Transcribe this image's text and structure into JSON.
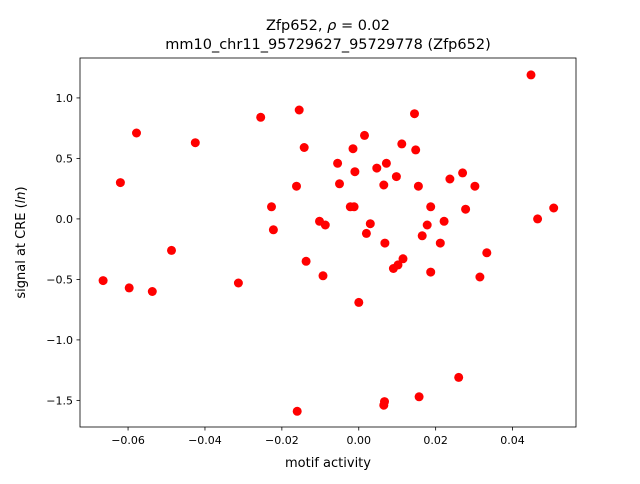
{
  "chart_data": {
    "type": "scatter",
    "title_line1_prefix": "Zfp652, ",
    "title_line1_rho": "ρ",
    "title_line1_suffix": " = 0.02",
    "title_line2": "mm10_chr11_95729627_95729778 (Zfp652)",
    "xlabel": "motif activity",
    "ylabel_prefix": "signal at CRE (",
    "ylabel_italic": "ln",
    "ylabel_suffix": ")",
    "xlim": [
      -0.0725,
      0.0565
    ],
    "ylim": [
      -1.72,
      1.33
    ],
    "xticks": [
      -0.06,
      -0.04,
      -0.02,
      0.0,
      0.02,
      0.04
    ],
    "xtick_labels": [
      "−0.06",
      "−0.04",
      "−0.02",
      "0.00",
      "0.02",
      "0.04"
    ],
    "yticks": [
      -1.5,
      -1.0,
      -0.5,
      0.0,
      0.5,
      1.0
    ],
    "ytick_labels": [
      "−1.5",
      "−1.0",
      "−0.5",
      "0.0",
      "0.5",
      "1.0"
    ],
    "grid": false,
    "marker_color": "#ff0000",
    "points": [
      {
        "x": -0.0665,
        "y": -0.51
      },
      {
        "x": -0.062,
        "y": 0.3
      },
      {
        "x": -0.0597,
        "y": -0.57
      },
      {
        "x": -0.0578,
        "y": 0.71
      },
      {
        "x": -0.0537,
        "y": -0.6
      },
      {
        "x": -0.0487,
        "y": -0.26
      },
      {
        "x": -0.0425,
        "y": 0.63
      },
      {
        "x": -0.0313,
        "y": -0.53
      },
      {
        "x": -0.0255,
        "y": 0.84
      },
      {
        "x": -0.0227,
        "y": 0.1
      },
      {
        "x": -0.0222,
        "y": -0.09
      },
      {
        "x": -0.016,
        "y": -1.59
      },
      {
        "x": -0.0162,
        "y": 0.27
      },
      {
        "x": -0.0155,
        "y": 0.9
      },
      {
        "x": -0.0142,
        "y": 0.59
      },
      {
        "x": -0.0137,
        "y": -0.35
      },
      {
        "x": -0.0102,
        "y": -0.02
      },
      {
        "x": -0.0093,
        "y": -0.47
      },
      {
        "x": -0.0087,
        "y": -0.05
      },
      {
        "x": -0.0055,
        "y": 0.46
      },
      {
        "x": -0.005,
        "y": 0.29
      },
      {
        "x": -0.0022,
        "y": 0.1
      },
      {
        "x": -0.0015,
        "y": 0.58
      },
      {
        "x": -0.0012,
        "y": 0.1
      },
      {
        "x": -0.001,
        "y": 0.39
      },
      {
        "x": 0.0,
        "y": -0.69
      },
      {
        "x": 0.0015,
        "y": 0.69
      },
      {
        "x": 0.002,
        "y": -0.12
      },
      {
        "x": 0.003,
        "y": -0.04
      },
      {
        "x": 0.0047,
        "y": 0.42
      },
      {
        "x": 0.0065,
        "y": -1.54
      },
      {
        "x": 0.0067,
        "y": -1.51
      },
      {
        "x": 0.0065,
        "y": 0.28
      },
      {
        "x": 0.0068,
        "y": -0.2
      },
      {
        "x": 0.0072,
        "y": 0.46
      },
      {
        "x": 0.009,
        "y": -0.41
      },
      {
        "x": 0.0098,
        "y": 0.35
      },
      {
        "x": 0.0102,
        "y": -0.38
      },
      {
        "x": 0.0112,
        "y": 0.62
      },
      {
        "x": 0.0115,
        "y": -0.33
      },
      {
        "x": 0.0145,
        "y": 0.87
      },
      {
        "x": 0.0148,
        "y": 0.57
      },
      {
        "x": 0.0155,
        "y": 0.27
      },
      {
        "x": 0.0157,
        "y": -1.47
      },
      {
        "x": 0.0165,
        "y": -0.14
      },
      {
        "x": 0.0178,
        "y": -0.05
      },
      {
        "x": 0.0187,
        "y": -0.44
      },
      {
        "x": 0.0187,
        "y": 0.1
      },
      {
        "x": 0.0212,
        "y": -0.2
      },
      {
        "x": 0.0222,
        "y": -0.02
      },
      {
        "x": 0.0237,
        "y": 0.33
      },
      {
        "x": 0.026,
        "y": -1.31
      },
      {
        "x": 0.027,
        "y": 0.38
      },
      {
        "x": 0.0278,
        "y": 0.08
      },
      {
        "x": 0.0302,
        "y": 0.27
      },
      {
        "x": 0.0315,
        "y": -0.48
      },
      {
        "x": 0.0333,
        "y": -0.28
      },
      {
        "x": 0.0448,
        "y": 1.19
      },
      {
        "x": 0.0465,
        "y": 0.0
      },
      {
        "x": 0.0507,
        "y": 0.09
      }
    ]
  }
}
